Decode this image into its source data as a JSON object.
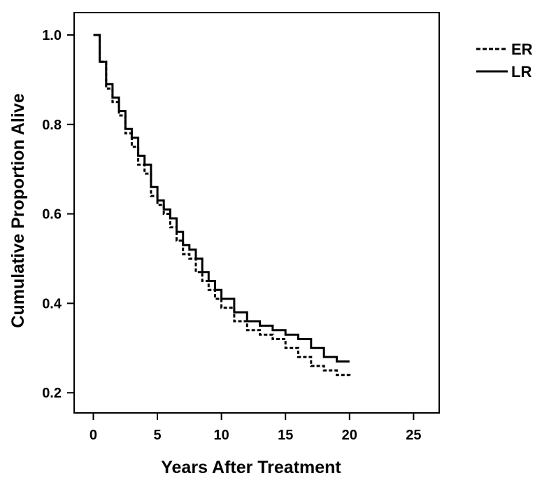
{
  "chart_data": {
    "type": "line",
    "title": "",
    "xlabel": "Years After Treatment",
    "ylabel": "Cumulative Proportion Alive",
    "xlim": [
      -1.5,
      27
    ],
    "ylim": [
      0.155,
      1.05
    ],
    "x_ticks": [
      "0",
      "5",
      "10",
      "15",
      "20",
      "25"
    ],
    "y_ticks": [
      "0.2",
      "0.4",
      "0.6",
      "0.8",
      "1.0"
    ],
    "x_tick_values": [
      0,
      5,
      10,
      15,
      20,
      25
    ],
    "y_tick_values": [
      0.2,
      0.4,
      0.6,
      0.8,
      1.0
    ],
    "grid": false,
    "legend_position": "top-right, outside plot",
    "series": [
      {
        "name": "ER",
        "line_style": "dashed",
        "color": "#000000",
        "x": [
          0,
          0.5,
          1,
          1.5,
          2,
          2.5,
          3,
          3.5,
          4,
          4.5,
          5,
          5.5,
          6,
          6.5,
          7,
          7.5,
          8,
          8.5,
          9,
          9.5,
          10,
          11,
          12,
          13,
          14,
          15,
          16,
          17,
          18,
          19,
          20
        ],
        "y": [
          1.0,
          0.94,
          0.88,
          0.85,
          0.82,
          0.78,
          0.75,
          0.71,
          0.69,
          0.64,
          0.62,
          0.6,
          0.57,
          0.54,
          0.51,
          0.5,
          0.47,
          0.45,
          0.43,
          0.41,
          0.39,
          0.36,
          0.34,
          0.33,
          0.32,
          0.3,
          0.28,
          0.26,
          0.25,
          0.24,
          0.235
        ]
      },
      {
        "name": "LR",
        "line_style": "solid",
        "color": "#000000",
        "x": [
          0,
          0.5,
          1,
          1.5,
          2,
          2.5,
          3,
          3.5,
          4,
          4.5,
          5,
          5.5,
          6,
          6.5,
          7,
          7.5,
          8,
          8.5,
          9,
          9.5,
          10,
          11,
          12,
          13,
          14,
          15,
          16,
          17,
          18,
          19,
          20
        ],
        "y": [
          1.0,
          0.94,
          0.89,
          0.86,
          0.83,
          0.79,
          0.77,
          0.73,
          0.71,
          0.66,
          0.63,
          0.61,
          0.59,
          0.56,
          0.53,
          0.52,
          0.5,
          0.47,
          0.45,
          0.43,
          0.41,
          0.38,
          0.36,
          0.35,
          0.34,
          0.33,
          0.32,
          0.3,
          0.28,
          0.27,
          0.27
        ]
      }
    ]
  }
}
